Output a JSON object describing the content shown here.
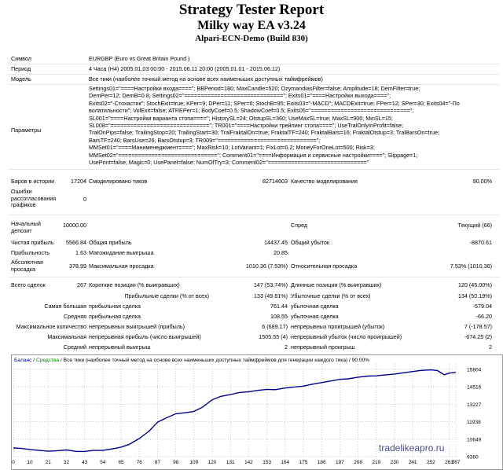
{
  "report": {
    "title": "Strategy Tester Report",
    "ea_name": "Milky way EA v3.24",
    "server": "Alpari-ECN-Demo (Build 830)"
  },
  "info": {
    "symbol_label": "Символ",
    "symbol_value": "EURGBP (Euro vs Great Britain Pound )",
    "period_label": "Период",
    "period_value": "4 Часа (H4) 2005.01.03 00:00 - 2015.06.11 20:00 (2005.01.01 - 2015.06.12)",
    "model_label": "Модель",
    "model_value": "Все тики (наиболее точный метод на основе всех наименьших доступных таймфреймов)",
    "params_label": "Параметры",
    "params_lines": [
      "Settings01=\"====Настройки входа====\"; BBPeriod=180; MaxCandle=520; OzymandiasFilter=false; Amplitude=18; DemFilter=true;",
      "DemPer=12; DemB=0.8; Settings02=\"==============================\"; Exits01=\"====Настройки выхода====\";",
      "Exits02=\"-Стохастик\"; StochExit=true; KPer=9; DPer=11; SPer=6; StochB=95; Exits03=\"-MACD\"; MACDExit=true; FPer=12; SPer=30; Exits04=\"-По",
      "волатильности\"; VolExit=false; ATREPer=1; BodyCoef=0.5; ShadowCoef=0.5; Exits05=\"==============================\";",
      "SL001=\"====Настройки варианта стопа====\"; HistorySL=24; OtstupSL=360; UseMaxSL=true; MaxSL=900; MinSL=15;",
      "SL008=\"==============================\"; TR001=\"====Настройки трейлинг стопа====\"; UseTralOnlyInProfit=false;",
      "TralOnPips=false; TrailingStop=20; TrailingStart=30; TralFraktalOn=true; FraktalTF=240; FraktalBars=16; FraktalOtstup=3; TralBarsOn=true;",
      "BarsTF=240; BarsUse=26; BarsOtstup=3; TR009=\"==============================\";",
      "MMSet01=\"====Манименеджмент====\"; MaxRisk=10; LotVariant=1; FixLot=0.2; MoneyForOneLot=500; Risk=3;",
      "MMSet02=\"==============================\"; Comment01=\"====Информация и сервисные настройки====\"; Slippage=1;",
      "UsePrint=false; Magic=0; UsePanel=false; NumOfTry=3; Comment02=\"==============================\""
    ]
  },
  "stats": {
    "bars_label": "Баров в истории",
    "bars_value": "17204",
    "ticks_label": "Смоделировано тиков",
    "ticks_value": "82714603",
    "quality_label": "Качество моделирования",
    "quality_value": "90.00%",
    "errors_label": "Ошибки рассогласования графиков",
    "errors_value": "0",
    "deposit_label": "Начальный депозит",
    "deposit_value": "10000.00",
    "spread_label": "Спред",
    "spread_value": "Текущий (66)",
    "net_label": "Чистая прибыль",
    "net_value": "5566.84",
    "gross_profit_label": "Общая прибыль",
    "gross_profit_value": "14437.45",
    "gross_loss_label": "Общий убыток",
    "gross_loss_value": "-8870.61",
    "pf_label": "Прибыльность",
    "pf_value": "1.63",
    "expect_label": "Матожидание выигрыша",
    "expect_value": "20.85",
    "abs_dd_label": "Абсолютная просадка",
    "abs_dd_value": "378.99",
    "max_dd_label": "Максимальная просадка",
    "max_dd_value": "1010.36 (7.53%)",
    "rel_dd_label": "Относительная просадка",
    "rel_dd_value": "7.53% (1010.36)",
    "total_label": "Всего сделок",
    "total_value": "267",
    "short_label": "Короткие позиции (% выигравших)",
    "short_value": "147 (53.74%)",
    "long_label": "Длинные позиции (% выигравших)",
    "long_value": "120 (45.00%)",
    "profit_trades_label": "Прибыльные сделки (% от всех)",
    "profit_trades_value": "133 (49.81%)",
    "loss_trades_label": "Убыточные сделки (% от всех)",
    "loss_trades_value": "134 (50.19%)",
    "largest_label": "Самая большая",
    "largest_profit_label": "прибыльная сделка",
    "largest_profit_value": "761.44",
    "largest_loss_label": "убыточная сделка",
    "largest_loss_value": "-579.04",
    "average_label": "Средняя",
    "avg_profit_label": "прибыльная сделка",
    "avg_profit_value": "108.55",
    "avg_loss_label": "убыточная сделка",
    "avg_loss_value": "-66.20",
    "max_count_label": "Максимальное количество",
    "max_cons_wins_label": "непрерывных выигрышей (прибыль)",
    "max_cons_wins_value": "6 (689.17)",
    "max_cons_losses_label": "непрерывных проигрышей (убыток)",
    "max_cons_losses_value": "7 (-178.57)",
    "maximal_label": "Максимальная",
    "max_cons_profit_label": "непрерывная прибыль (число выигрышей)",
    "max_cons_profit_value": "1505.55 (4)",
    "max_cons_loss_label": "непрерывный убыток (число проигрышей)",
    "max_cons_loss_value": "-674.25 (2)",
    "avg_cons_label": "Средний",
    "avg_cons_wins_label": "непрерывный выигрыш",
    "avg_cons_wins_value": "2",
    "avg_cons_losses_label": "непрерывный проигрыш",
    "avg_cons_losses_value": "2"
  },
  "chart_data": {
    "type": "line",
    "legend_balance": "Баланс",
    "legend_sep1": " / ",
    "legend_equity": "Средства",
    "legend_rest": " / Все тики (наиболее точный метод на основе всех наименьших доступных таймфреймов для генерации каждого тика) / 90.00%",
    "x_ticks": [
      "0",
      "10",
      "21",
      "32",
      "43",
      "54",
      "65",
      "76",
      "87",
      "98",
      "109",
      "120",
      "131",
      "142",
      "153",
      "164",
      "175",
      "186",
      "197",
      "208",
      "219",
      "230",
      "241",
      "252",
      "263",
      "267"
    ],
    "xlim": [
      0,
      267
    ],
    "y_ticks": [
      "15804",
      "14516",
      "13227",
      "11938",
      "10649",
      "9360"
    ],
    "ylim": [
      9360,
      16200
    ],
    "grid": true,
    "balance_color": "#00008b",
    "equity_color": "#008000",
    "x": [
      0,
      5,
      10,
      15,
      21,
      26,
      32,
      38,
      43,
      48,
      54,
      60,
      65,
      70,
      76,
      82,
      87,
      92,
      98,
      104,
      109,
      114,
      120,
      125,
      131,
      136,
      142,
      148,
      153,
      158,
      164,
      170,
      175,
      180,
      186,
      192,
      197,
      202,
      208,
      214,
      219,
      224,
      230,
      235,
      241,
      246,
      252,
      256,
      260,
      263,
      267
    ],
    "values": [
      10000,
      9960,
      9890,
      9830,
      9760,
      9790,
      9850,
      9750,
      9740,
      9820,
      9820,
      9940,
      10060,
      10270,
      10700,
      11250,
      11900,
      12200,
      12520,
      12600,
      12700,
      13000,
      13550,
      13800,
      13940,
      14080,
      14150,
      14250,
      14320,
      14300,
      14420,
      14500,
      14560,
      14700,
      14820,
      14950,
      15060,
      15100,
      15220,
      15300,
      15320,
      15380,
      15450,
      15540,
      15640,
      15720,
      15760,
      15700,
      15400,
      15520,
      15566.84
    ]
  },
  "watermark": "tradelikeapro.ru"
}
